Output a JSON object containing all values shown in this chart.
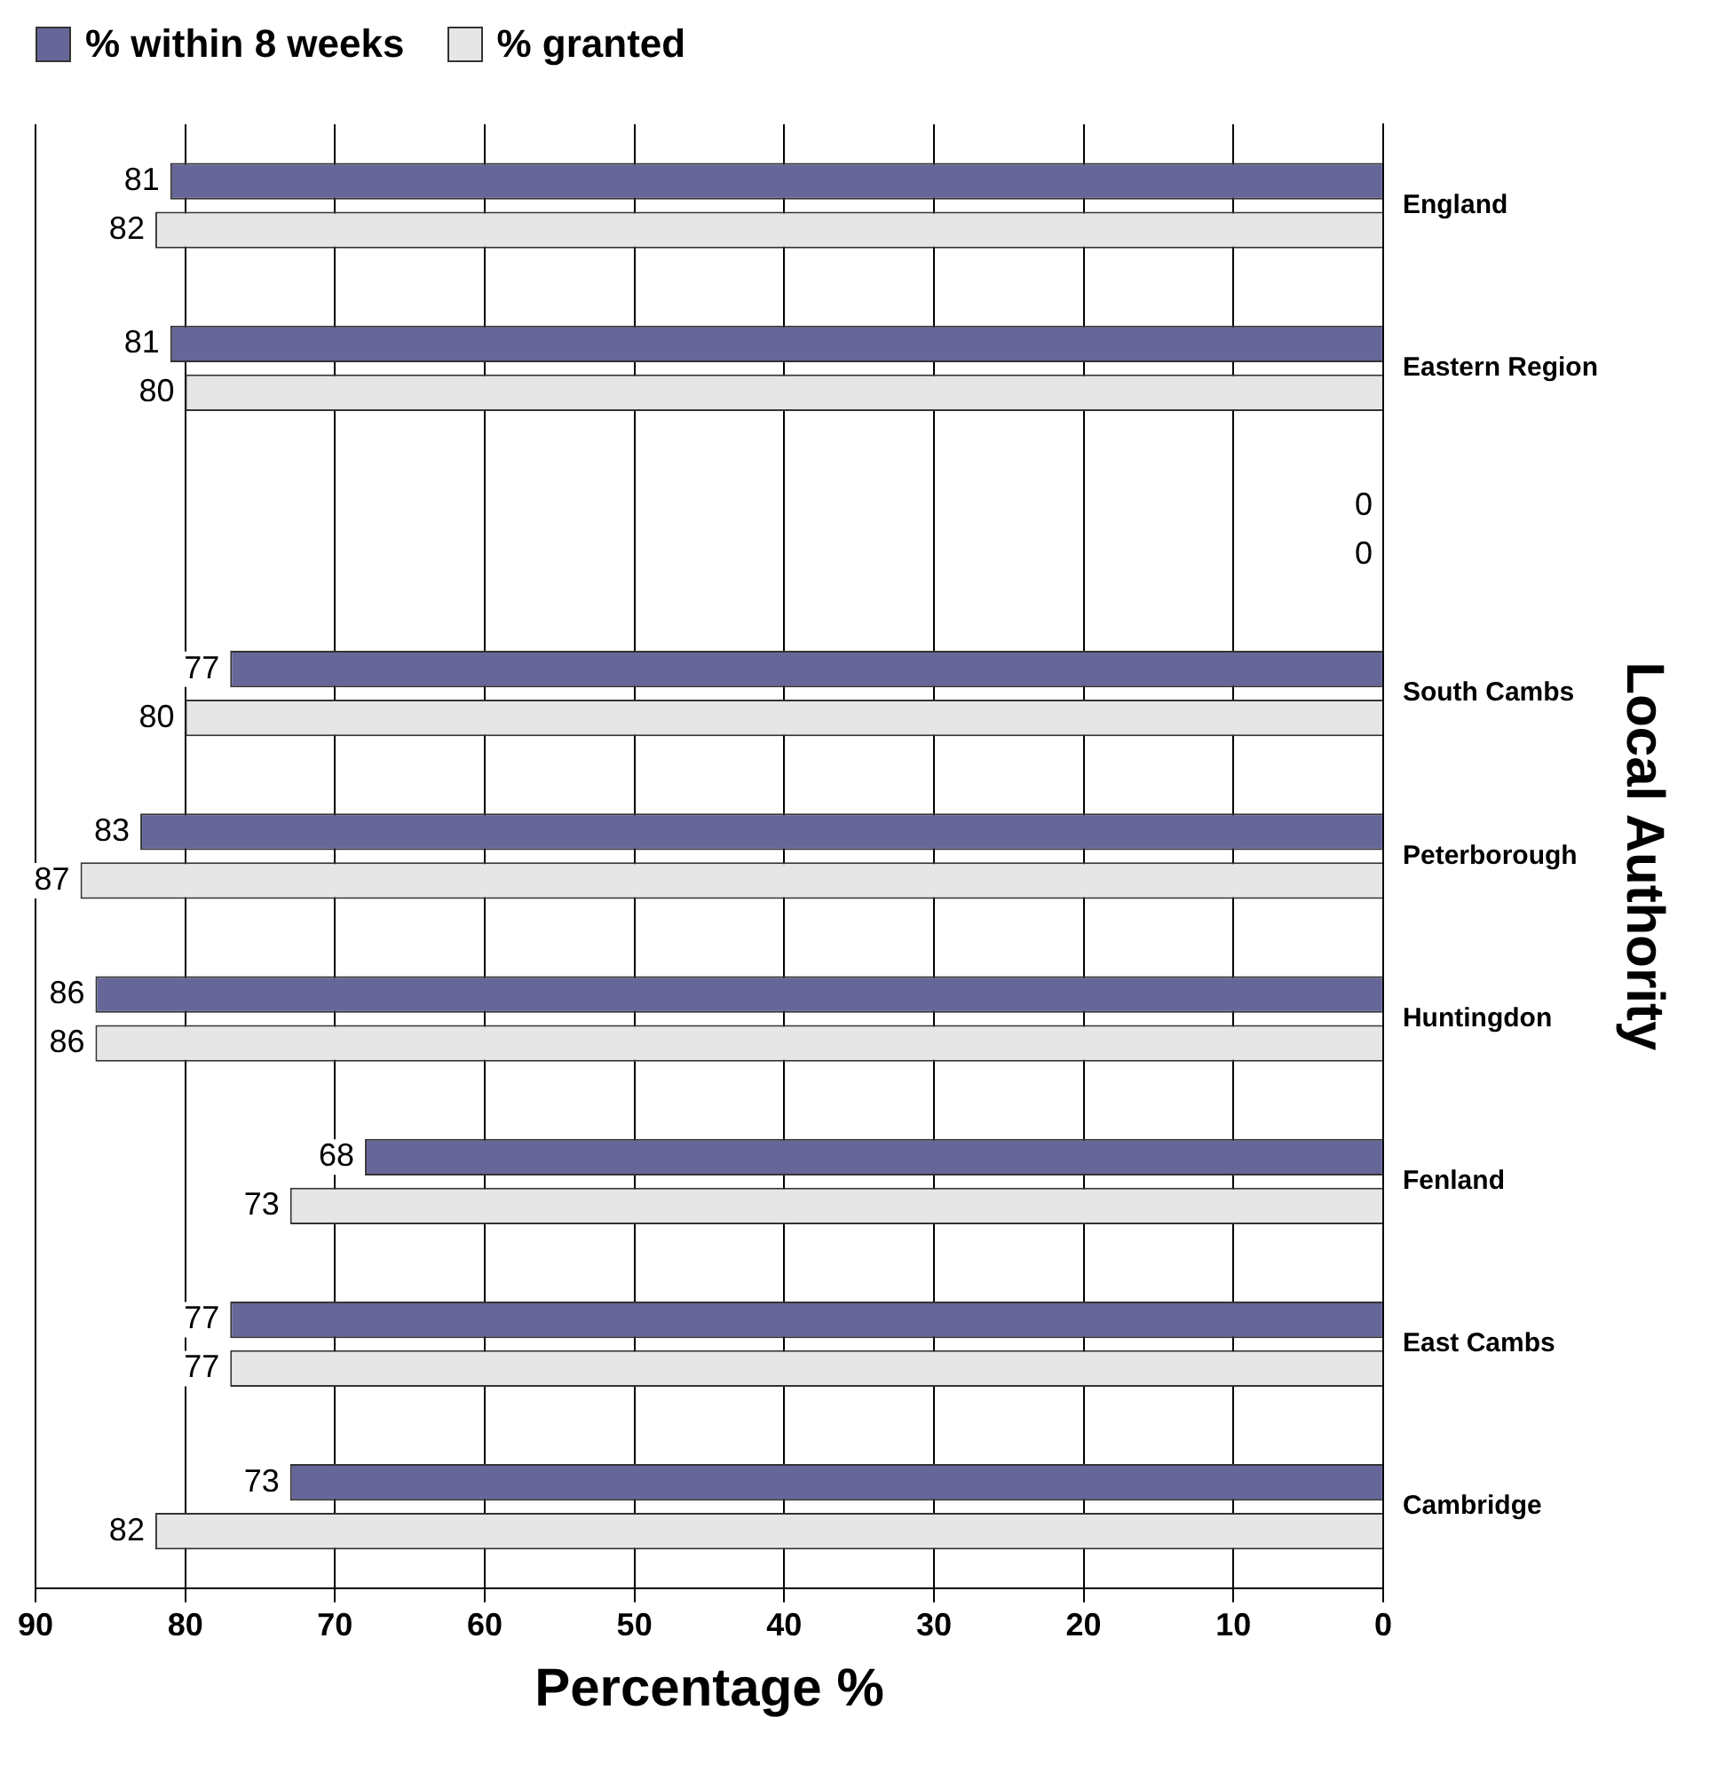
{
  "chart_data": {
    "type": "bar",
    "orientation": "horizontal",
    "xlabel": "Percentage %",
    "ylabel": "Local Authority",
    "categories": [
      "England",
      "Eastern Region",
      null,
      "South Cambs",
      "Peterborough",
      "Huntingdon",
      "Fenland",
      "East Cambs",
      "Cambridge"
    ],
    "series": [
      {
        "name": "% within 8 weeks",
        "color": "#666699",
        "values": [
          81,
          81,
          0,
          77,
          83,
          86,
          68,
          77,
          73
        ]
      },
      {
        "name": "% granted",
        "color": "#e6e6e6",
        "values": [
          82,
          80,
          0,
          80,
          87,
          86,
          73,
          77,
          82
        ]
      }
    ],
    "xlim": [
      90,
      0
    ],
    "xticks": [
      0,
      10,
      20,
      30,
      40,
      50,
      60,
      70,
      80,
      90
    ],
    "grid": "x",
    "legend": "top left",
    "data_labels": true
  }
}
